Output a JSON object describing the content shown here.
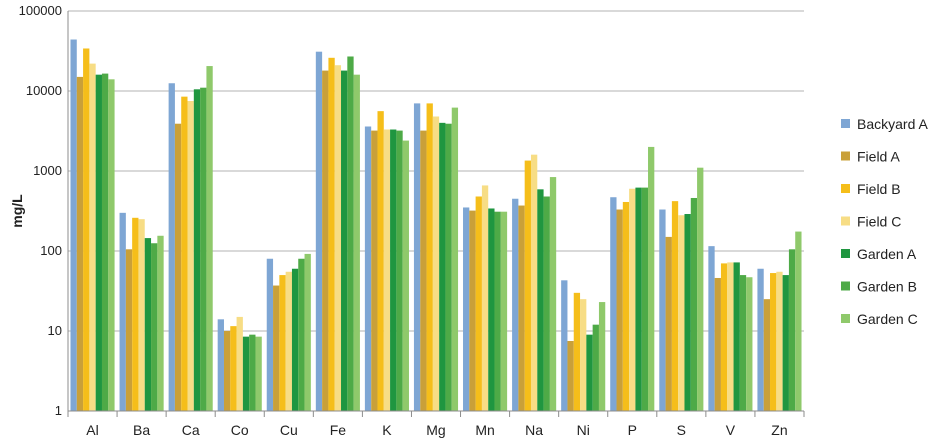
{
  "chart_data": {
    "type": "bar",
    "yscale": "log",
    "ylabel": "mg/L",
    "ylim": [
      1,
      100000
    ],
    "yticks": [
      "1",
      "10",
      "100",
      "1000",
      "10000",
      "100000"
    ],
    "grid": "horizontal",
    "legend_position": "right",
    "categories": [
      "Al",
      "Ba",
      "Ca",
      "Co",
      "Cu",
      "Fe",
      "K",
      "Mg",
      "Mn",
      "Na",
      "Ni",
      "P",
      "S",
      "V",
      "Zn"
    ],
    "series": [
      {
        "name": "Backyard A",
        "color": "#7ea6d4",
        "values": [
          44000,
          300,
          12500,
          14,
          80,
          31000,
          3600,
          7000,
          350,
          450,
          43,
          470,
          330,
          115,
          60
        ]
      },
      {
        "name": "Field A",
        "color": "#c9a039",
        "values": [
          15000,
          105,
          3900,
          10,
          37,
          18000,
          3200,
          3200,
          320,
          370,
          7.5,
          330,
          150,
          46,
          25
        ]
      },
      {
        "name": "Field B",
        "color": "#f5be1a",
        "values": [
          34000,
          260,
          8500,
          11.5,
          50,
          26000,
          5600,
          7000,
          480,
          1350,
          30,
          410,
          420,
          70,
          53
        ]
      },
      {
        "name": "Field C",
        "color": "#f7dd85",
        "values": [
          22000,
          250,
          7500,
          15,
          55,
          21000,
          3300,
          4800,
          660,
          1600,
          25,
          600,
          280,
          72,
          55
        ]
      },
      {
        "name": "Garden A",
        "color": "#1f9640",
        "values": [
          16000,
          145,
          10500,
          8.5,
          60,
          18000,
          3300,
          4000,
          340,
          590,
          9,
          620,
          290,
          72,
          50
        ]
      },
      {
        "name": "Garden B",
        "color": "#4eaa47",
        "values": [
          16500,
          125,
          11000,
          9,
          80,
          27000,
          3200,
          3900,
          310,
          480,
          12,
          620,
          460,
          50,
          105
        ]
      },
      {
        "name": "Garden C",
        "color": "#8fc96b",
        "values": [
          14000,
          155,
          20500,
          8.5,
          92,
          16000,
          2400,
          6200,
          310,
          840,
          23,
          2000,
          1100,
          47,
          175
        ]
      }
    ]
  }
}
